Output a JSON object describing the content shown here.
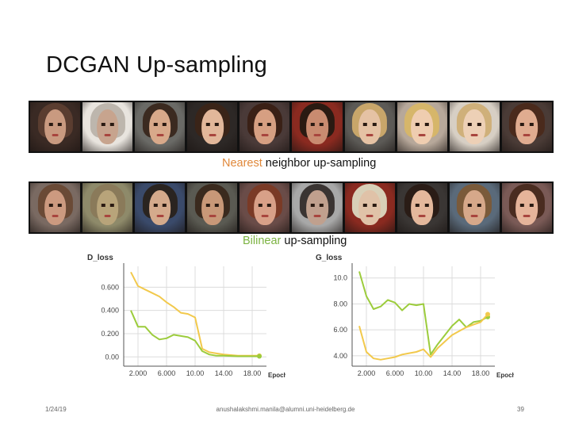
{
  "slide": {
    "title": "DCGAN Up-sampling",
    "caption_nearest_highlight": "Nearest",
    "caption_nearest_rest": " neighbor up-sampling",
    "caption_bilinear_highlight": "Bilinear",
    "caption_bilinear_rest": " up-sampling",
    "footer_date": "1/24/19",
    "footer_email": "anushalakshmi.manila@alumni.uni-heidelberg.de",
    "footer_page": "39"
  },
  "colors": {
    "nearest_highlight": "#e0883a",
    "bilinear_highlight": "#7cb342",
    "series_yellow": "#f2c94c",
    "series_green": "#9ccc3c"
  },
  "chart_data": [
    {
      "type": "line",
      "title": "D_loss",
      "xlabel": "Epoch",
      "ylabel": "",
      "xlim": [
        0,
        20
      ],
      "ylim": [
        -0.08,
        0.78
      ],
      "x_ticks": [
        2,
        6,
        10,
        14,
        18
      ],
      "x_tick_labels": [
        "2.000",
        "6.000",
        "10.00",
        "14.00",
        "18.00"
      ],
      "y_ticks": [
        0,
        0.2,
        0.4,
        0.6
      ],
      "y_tick_labels": [
        "0.00",
        "0.200",
        "0.400",
        "0.600"
      ],
      "grid": true,
      "series": [
        {
          "color": "#f2c94c",
          "x": [
            1,
            2,
            3,
            4,
            5,
            6,
            7,
            8,
            9,
            10,
            11,
            12,
            13,
            14,
            16,
            18,
            19
          ],
          "y": [
            0.73,
            0.61,
            0.58,
            0.55,
            0.52,
            0.47,
            0.43,
            0.38,
            0.37,
            0.34,
            0.07,
            0.04,
            0.03,
            0.02,
            0.01,
            0.01,
            0.01
          ]
        },
        {
          "color": "#9ccc3c",
          "x": [
            1,
            2,
            3,
            4,
            5,
            6,
            7,
            8,
            9,
            10,
            11,
            12,
            13,
            14,
            16,
            18,
            19
          ],
          "y": [
            0.4,
            0.26,
            0.26,
            0.19,
            0.15,
            0.16,
            0.19,
            0.18,
            0.17,
            0.14,
            0.05,
            0.02,
            0.01,
            0.01,
            0.005,
            0.005,
            0.005
          ]
        }
      ]
    },
    {
      "type": "line",
      "title": "G_loss",
      "xlabel": "Epoch",
      "ylabel": "",
      "xlim": [
        0,
        20
      ],
      "ylim": [
        3.2,
        10.9
      ],
      "x_ticks": [
        2,
        6,
        10,
        14,
        18
      ],
      "x_tick_labels": [
        "2.000",
        "6.000",
        "10.00",
        "14.00",
        "18.00"
      ],
      "y_ticks": [
        4,
        6,
        8,
        10
      ],
      "y_tick_labels": [
        "4.00",
        "6.00",
        "8.00",
        "10.0"
      ],
      "grid": true,
      "series": [
        {
          "color": "#9ccc3c",
          "x": [
            1,
            2,
            3,
            4,
            5,
            6,
            7,
            8,
            9,
            10,
            11,
            12,
            13,
            14,
            15,
            16,
            17,
            18,
            19
          ],
          "y": [
            10.5,
            8.6,
            7.6,
            7.8,
            8.3,
            8.1,
            7.5,
            8.0,
            7.9,
            8.0,
            4.1,
            4.9,
            5.6,
            6.3,
            6.8,
            6.2,
            6.6,
            6.7,
            7.0
          ]
        },
        {
          "color": "#f2c94c",
          "x": [
            1,
            2,
            3,
            4,
            5,
            6,
            7,
            8,
            9,
            10,
            11,
            12,
            13,
            14,
            15,
            16,
            17,
            18,
            19
          ],
          "y": [
            6.3,
            4.3,
            3.8,
            3.7,
            3.8,
            3.9,
            4.1,
            4.2,
            4.3,
            4.5,
            3.9,
            4.6,
            5.1,
            5.6,
            5.9,
            6.2,
            6.4,
            6.6,
            7.2
          ]
        }
      ]
    }
  ]
}
